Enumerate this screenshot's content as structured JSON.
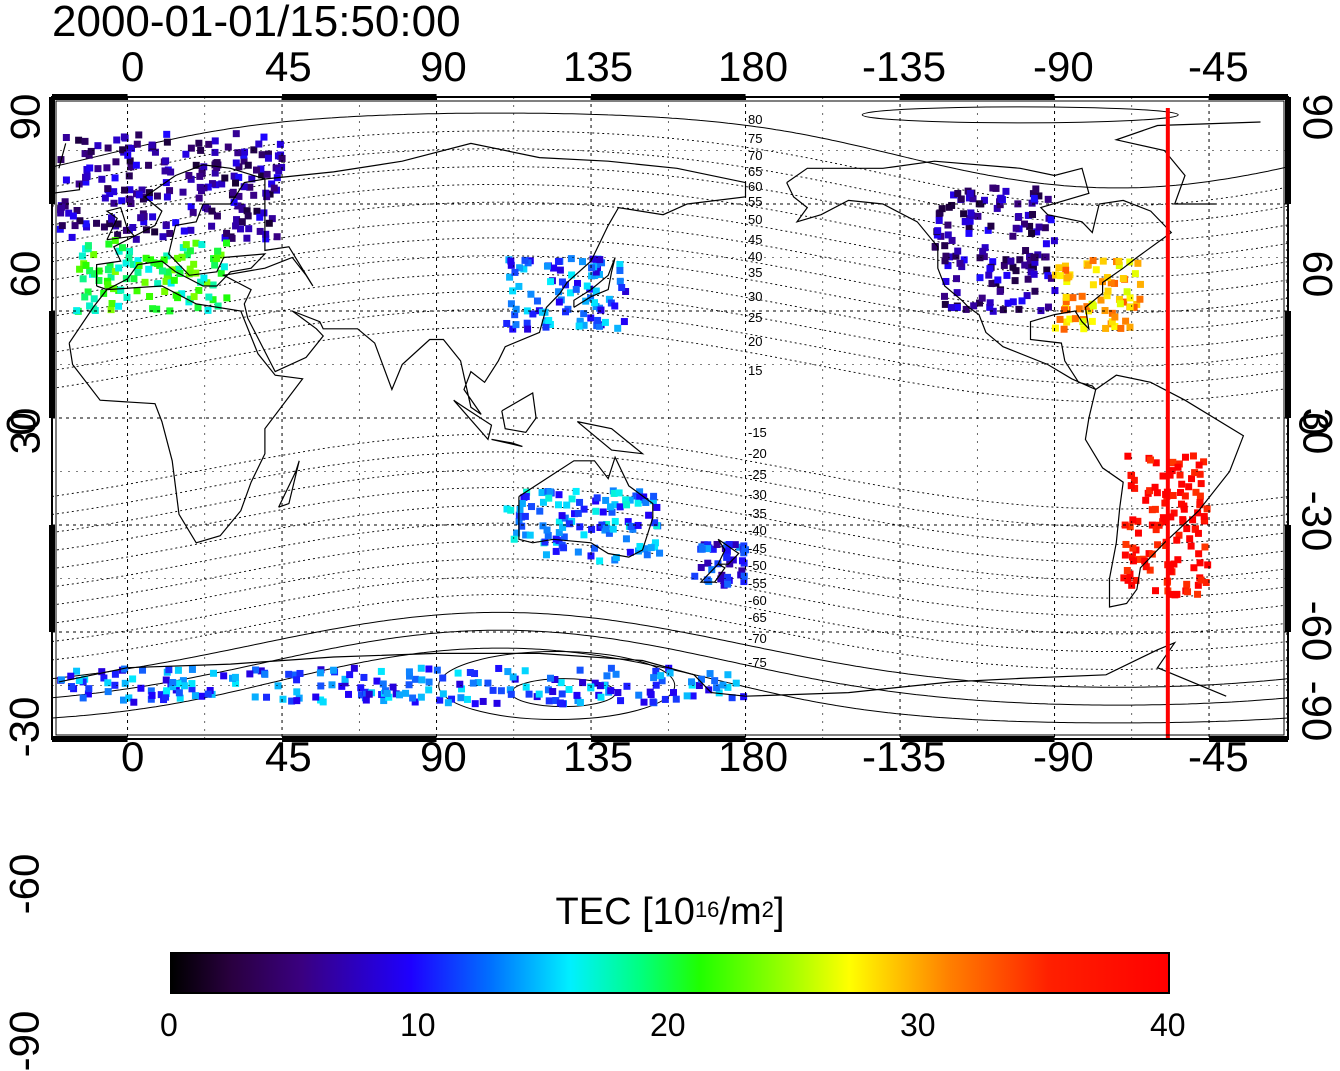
{
  "title": "2000-01-01/15:50:00",
  "longitude_ticks": [
    "0",
    "45",
    "90",
    "135",
    "180",
    "-135",
    "-90",
    "-45"
  ],
  "latitude_ticks": [
    "90",
    "60",
    "30",
    "0",
    "-30",
    "-60",
    "-90"
  ],
  "magnetic_latitude_labels": [
    "80",
    "75",
    "70",
    "65",
    "60",
    "55",
    "50",
    "45",
    "40",
    "35",
    "30",
    "25",
    "20",
    "15",
    "-15",
    "-20",
    "-25",
    "-30",
    "-35",
    "-40",
    "-45",
    "-50",
    "-55",
    "-60",
    "-65",
    "-70",
    "-75"
  ],
  "terminator_line": {
    "longitude": -57,
    "color": "#ff0000"
  },
  "colorbar": {
    "label_main": "TEC  [10",
    "label_exp": "16",
    "label_unit": "/m",
    "label_exp2": "2",
    "label_close": "]",
    "ticks": [
      "0",
      "10",
      "20",
      "30",
      "40"
    ],
    "range": [
      0,
      40
    ],
    "colormap": [
      "#000000",
      "#3a0080",
      "#1e00ff",
      "#00f0ff",
      "#20ff00",
      "#ffff00",
      "#ff8000",
      "#ff0000"
    ]
  },
  "tec_regions": [
    {
      "name": "europe-north",
      "lon": [
        -20,
        45
      ],
      "lat": [
        50,
        80
      ],
      "tec": 6
    },
    {
      "name": "europe-south",
      "lon": [
        -15,
        30
      ],
      "lat": [
        30,
        50
      ],
      "tec": 20
    },
    {
      "name": "north-america-west",
      "lon": [
        -125,
        -90
      ],
      "lat": [
        30,
        65
      ],
      "tec": 6
    },
    {
      "name": "north-america-east",
      "lon": [
        -90,
        -65
      ],
      "lat": [
        25,
        45
      ],
      "tec": 30
    },
    {
      "name": "south-america",
      "lon": [
        -70,
        -45
      ],
      "lat": [
        -50,
        -10
      ],
      "tec": 40
    },
    {
      "name": "east-asia",
      "lon": [
        110,
        145
      ],
      "lat": [
        25,
        45
      ],
      "tec": 12
    },
    {
      "name": "australia",
      "lon": [
        110,
        155
      ],
      "lat": [
        -40,
        -20
      ],
      "tec": 13
    },
    {
      "name": "new-zealand",
      "lon": [
        165,
        180
      ],
      "lat": [
        -47,
        -35
      ],
      "tec": 10
    },
    {
      "name": "antarctica",
      "lon": [
        -20,
        180
      ],
      "lat": [
        -80,
        -70
      ],
      "tec": 12
    }
  ]
}
